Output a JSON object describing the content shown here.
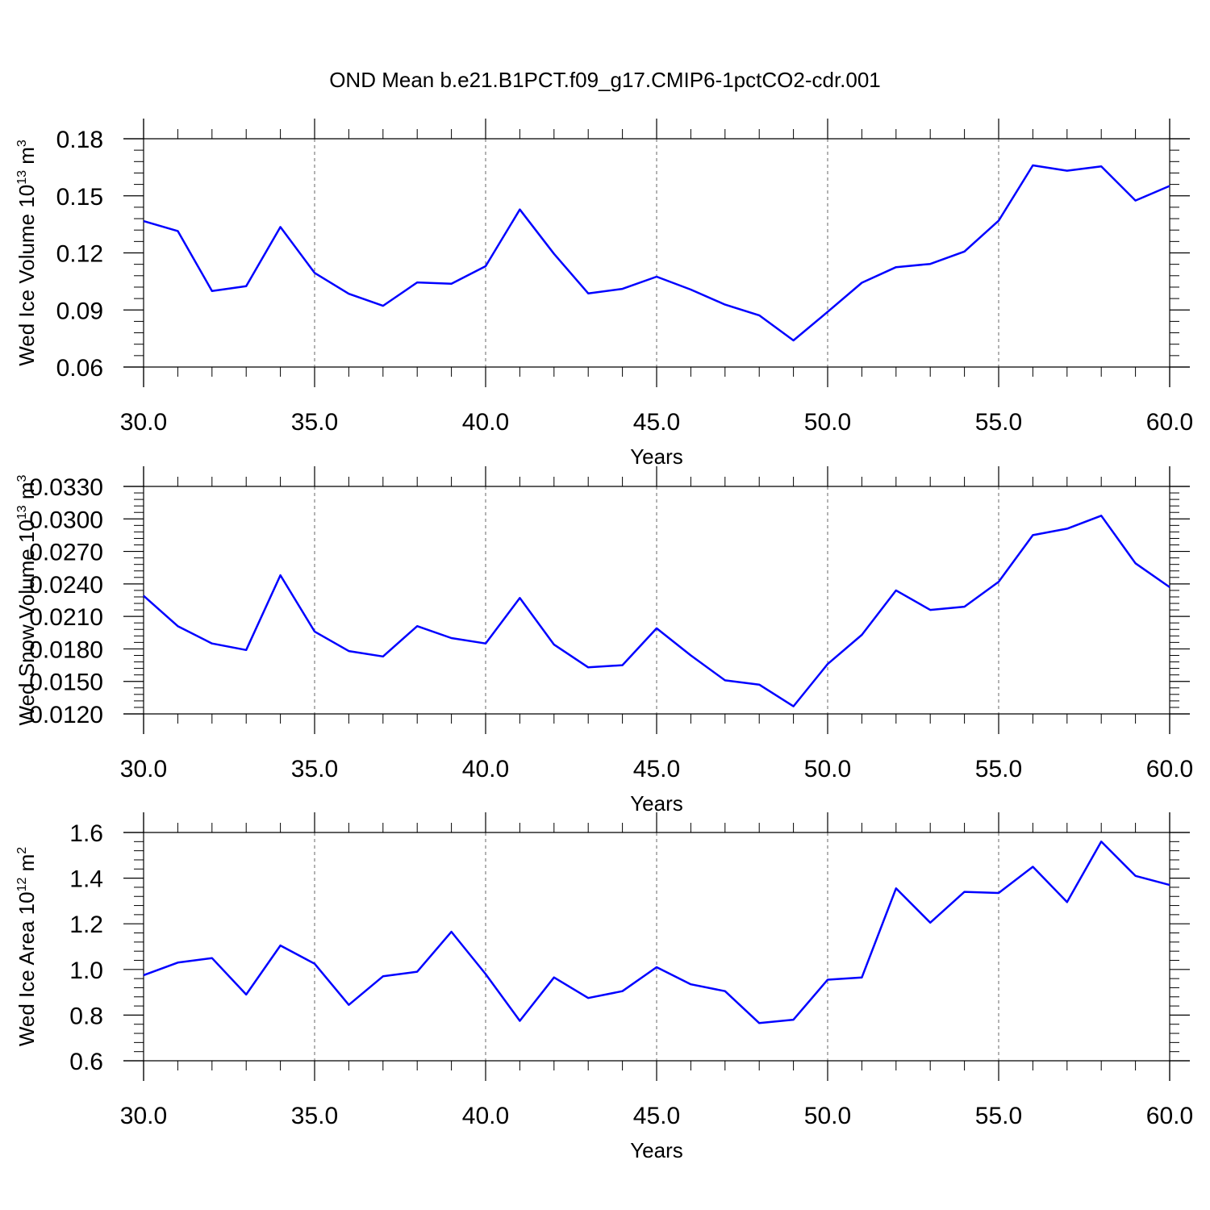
{
  "title": "OND Mean b.e21.B1PCT.f09_g17.CMIP6-1pctCO2-cdr.001",
  "colors": {
    "series": "#0000ff",
    "axis": "#000000",
    "grid": "#808080",
    "background": "#ffffff"
  },
  "chart_data": [
    {
      "type": "line",
      "xlabel": "Years",
      "ylabel_main": "Wed Ice Volume 10",
      "ylabel_sup": "13",
      "ylabel_unit": " m",
      "ylabel_unit_sup": "3",
      "xlim": [
        30,
        60
      ],
      "ylim": [
        0.06,
        0.18
      ],
      "xticks": [
        30,
        35,
        40,
        45,
        50,
        55,
        60
      ],
      "xtick_labels": [
        "30.0",
        "35.0",
        "40.0",
        "45.0",
        "50.0",
        "55.0",
        "60.0"
      ],
      "yticks": [
        0.06,
        0.09,
        0.12,
        0.15,
        0.18
      ],
      "ytick_labels": [
        "0.06",
        "0.09",
        "0.12",
        "0.15",
        "0.18"
      ],
      "grid": "vertical-dashed",
      "x": [
        30,
        31,
        32,
        33,
        34,
        35,
        36,
        37,
        38,
        39,
        40,
        41,
        42,
        43,
        44,
        45,
        46,
        47,
        48,
        49,
        50,
        51,
        52,
        53,
        54,
        55,
        56,
        57,
        58,
        59,
        60
      ],
      "y": [
        0.1367,
        0.1315,
        0.1,
        0.1025,
        0.1336,
        0.1095,
        0.0985,
        0.0922,
        0.1045,
        0.1038,
        0.113,
        0.1428,
        0.1195,
        0.0987,
        0.1011,
        0.1075,
        0.1007,
        0.0928,
        0.0872,
        0.074,
        0.089,
        0.1043,
        0.1125,
        0.1142,
        0.1207,
        0.1369,
        0.166,
        0.1632,
        0.1655,
        0.1475,
        0.1552
      ]
    },
    {
      "type": "line",
      "xlabel": "Years",
      "ylabel_main": "Wed Snow Volume 10",
      "ylabel_sup": "13",
      "ylabel_unit": " m",
      "ylabel_unit_sup": "3",
      "xlim": [
        30,
        60
      ],
      "ylim": [
        0.012,
        0.033
      ],
      "xticks": [
        30,
        35,
        40,
        45,
        50,
        55,
        60
      ],
      "xtick_labels": [
        "30.0",
        "35.0",
        "40.0",
        "45.0",
        "50.0",
        "55.0",
        "60.0"
      ],
      "yticks": [
        0.012,
        0.015,
        0.018,
        0.021,
        0.024,
        0.027,
        0.03,
        0.033
      ],
      "ytick_labels": [
        "0.0120",
        "0.0150",
        "0.0180",
        "0.0210",
        "0.0240",
        "0.0270",
        "0.0300",
        "0.0330"
      ],
      "grid": "vertical-dashed",
      "x": [
        30,
        31,
        32,
        33,
        34,
        35,
        36,
        37,
        38,
        39,
        40,
        41,
        42,
        43,
        44,
        45,
        46,
        47,
        48,
        49,
        50,
        51,
        52,
        53,
        54,
        55,
        56,
        57,
        58,
        59,
        60
      ],
      "y": [
        0.0229,
        0.0201,
        0.0185,
        0.0179,
        0.0248,
        0.0196,
        0.0178,
        0.0173,
        0.0201,
        0.019,
        0.0185,
        0.0227,
        0.0184,
        0.0163,
        0.0165,
        0.0199,
        0.0174,
        0.0151,
        0.0147,
        0.0127,
        0.0166,
        0.0193,
        0.0234,
        0.0216,
        0.0219,
        0.0242,
        0.0285,
        0.0291,
        0.0303,
        0.0259,
        0.0237
      ]
    },
    {
      "type": "line",
      "xlabel": "Years",
      "ylabel_main": "Wed Ice Area 10",
      "ylabel_sup": "12",
      "ylabel_unit": " m",
      "ylabel_unit_sup": "2",
      "xlim": [
        30,
        60
      ],
      "ylim": [
        0.6,
        1.6
      ],
      "xticks": [
        30,
        35,
        40,
        45,
        50,
        55,
        60
      ],
      "xtick_labels": [
        "30.0",
        "35.0",
        "40.0",
        "45.0",
        "50.0",
        "55.0",
        "60.0"
      ],
      "yticks": [
        0.6,
        0.8,
        1.0,
        1.2,
        1.4,
        1.6
      ],
      "ytick_labels": [
        "0.6",
        "0.8",
        "1.0",
        "1.2",
        "1.4",
        "1.6"
      ],
      "grid": "vertical-dashed",
      "x": [
        30,
        31,
        32,
        33,
        34,
        35,
        36,
        37,
        38,
        39,
        40,
        41,
        42,
        43,
        44,
        45,
        46,
        47,
        48,
        49,
        50,
        51,
        52,
        53,
        54,
        55,
        56,
        57,
        58,
        59,
        60
      ],
      "y": [
        0.975,
        1.03,
        1.05,
        0.89,
        1.105,
        1.025,
        0.845,
        0.97,
        0.99,
        1.165,
        0.98,
        0.775,
        0.965,
        0.875,
        0.905,
        1.01,
        0.935,
        0.905,
        0.765,
        0.78,
        0.955,
        0.965,
        1.355,
        1.205,
        1.34,
        1.335,
        1.45,
        1.295,
        1.56,
        1.41,
        1.37
      ]
    }
  ]
}
